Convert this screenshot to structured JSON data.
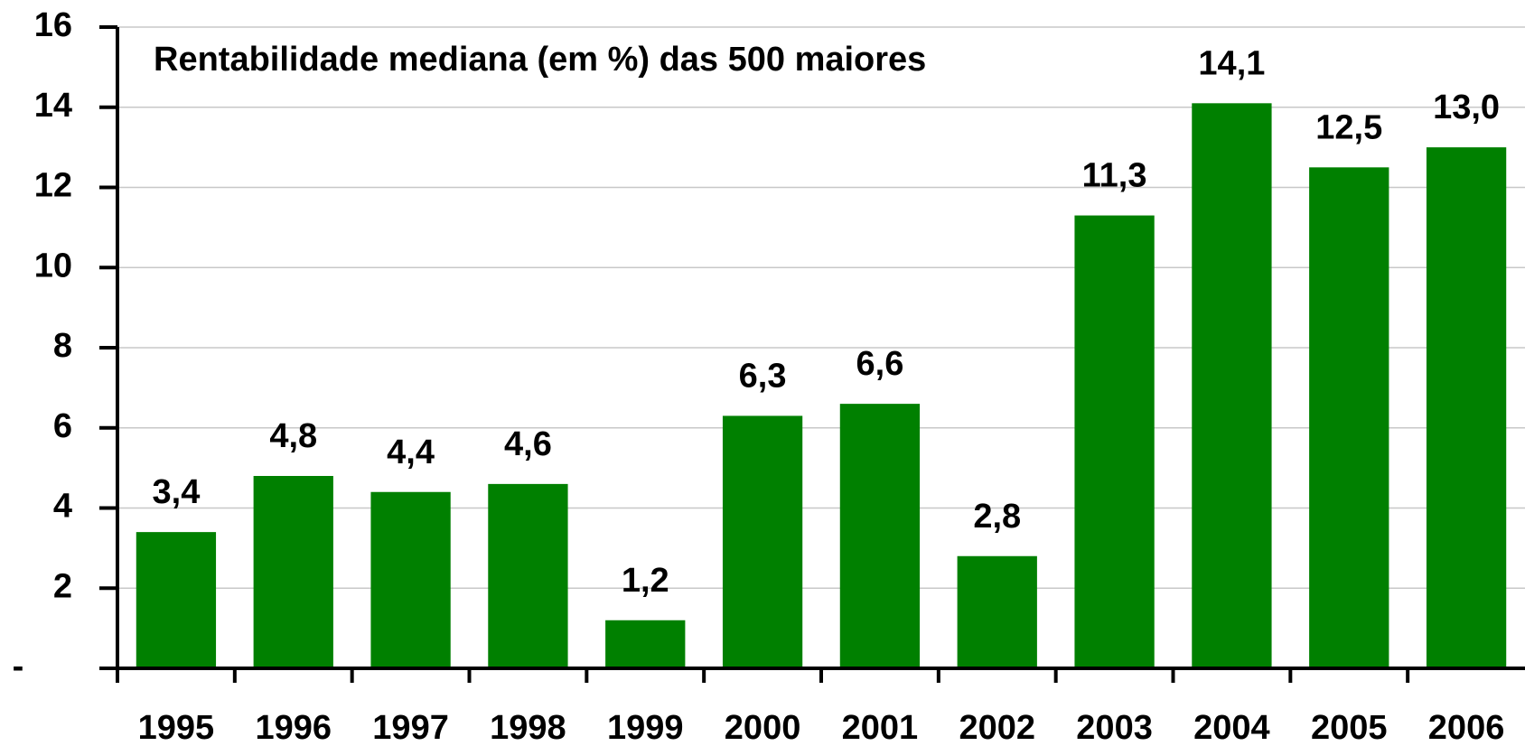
{
  "chart_data": {
    "type": "bar",
    "title": "Rentabilidade mediana (em %) das 500 maiores",
    "categories": [
      "1995",
      "1996",
      "1997",
      "1998",
      "1999",
      "2000",
      "2001",
      "2002",
      "2003",
      "2004",
      "2005",
      "2006"
    ],
    "values": [
      3.4,
      4.8,
      4.4,
      4.6,
      1.2,
      6.3,
      6.6,
      2.8,
      11.3,
      14.1,
      12.5,
      13.0
    ],
    "value_labels": [
      "3,4",
      "4,8",
      "4,4",
      "4,6",
      "1,2",
      "6,3",
      "6,6",
      "2,8",
      "11,3",
      "14,1",
      "12,5",
      "13,0"
    ],
    "color": "#008000",
    "ylim": [
      0,
      16
    ],
    "yticks": [
      {
        "value": 0,
        "label": "-"
      },
      2,
      4,
      6,
      8,
      10,
      12,
      14,
      16
    ],
    "grid": true
  }
}
